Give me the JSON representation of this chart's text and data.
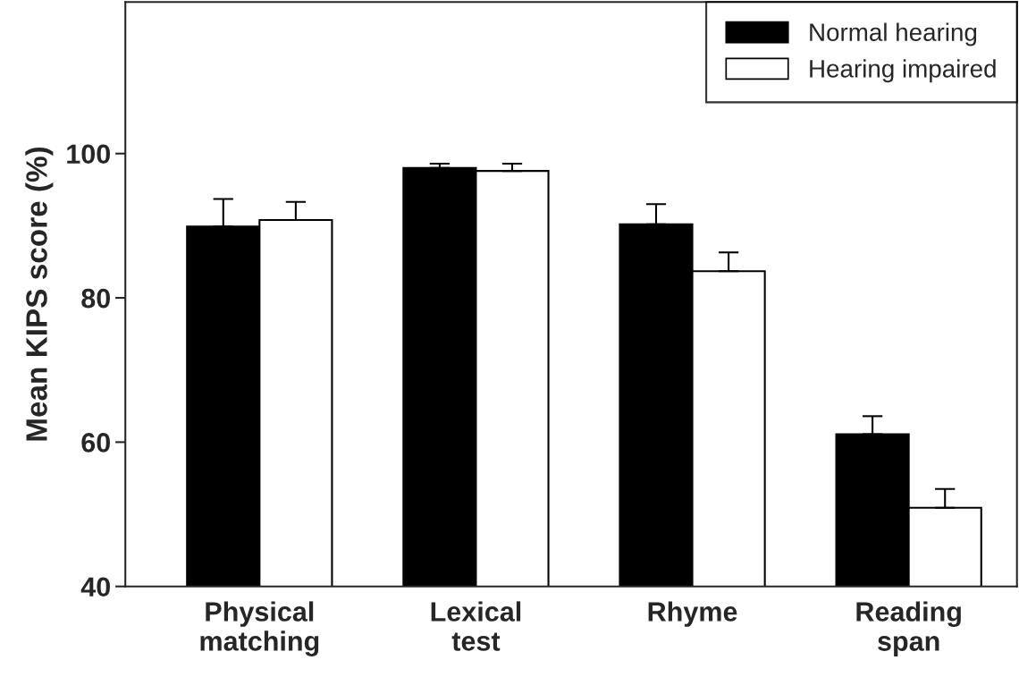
{
  "chart_data": {
    "type": "bar",
    "ylabel": "Mean KIPS score (%)",
    "categories": [
      "Physical\nmatching",
      "Lexical\ntest",
      "Rhyme",
      "Reading\nspan"
    ],
    "series": [
      {
        "name": "Normal hearing",
        "color": "#000000",
        "values": [
          89.9,
          98.0,
          90.2,
          61.1
        ],
        "errors": [
          [
            89.9,
            93.7
          ],
          [
            98.0,
            98.6
          ],
          [
            90.2,
            93.0
          ],
          [
            61.1,
            63.6
          ]
        ]
      },
      {
        "name": "Hearing impaired",
        "color": "#ffffff",
        "values": [
          90.8,
          97.6,
          83.7,
          50.9
        ],
        "errors": [
          [
            90.8,
            93.3
          ],
          [
            97.6,
            98.6
          ],
          [
            83.7,
            86.3
          ],
          [
            50.9,
            53.5
          ]
        ]
      }
    ],
    "ylim": [
      40,
      121
    ],
    "yticks": [
      40,
      60,
      80,
      100
    ],
    "grid": false,
    "legend": "top right"
  }
}
